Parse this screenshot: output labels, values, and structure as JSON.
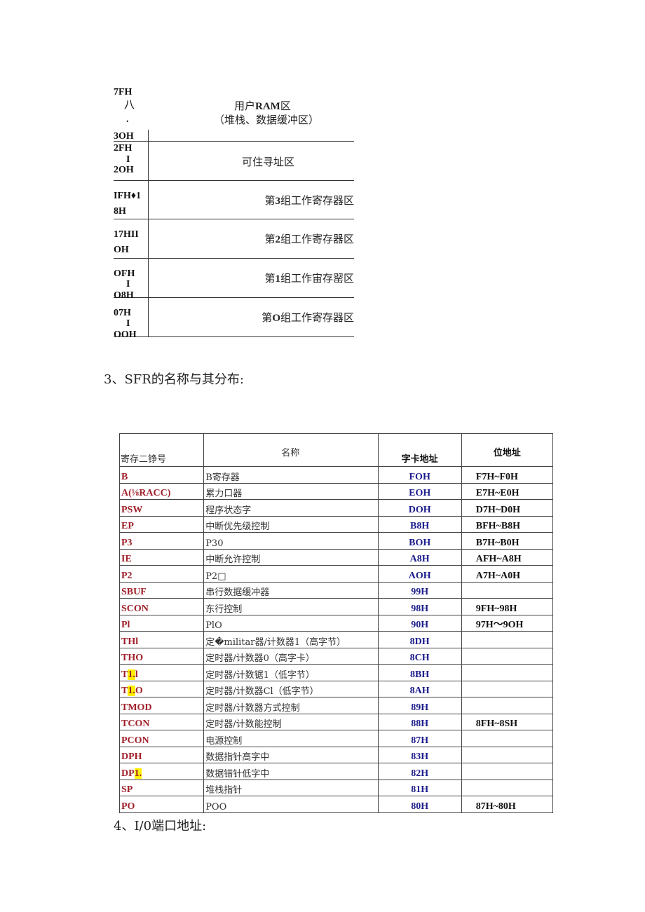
{
  "memory_map": {
    "user_ram": {
      "addr_top": "7FH",
      "addr_sep": "八",
      "addr_dot": ".",
      "addr_bottom": "3OH",
      "title_prefix": "用户",
      "title_bold": "RAM",
      "title_suffix": "区",
      "subtitle": "（堆栈、数据缓冲区）"
    },
    "bit_area": {
      "addr_top": "2FH",
      "addr_sep": "I",
      "addr_bottom": "2OH",
      "title": "可住寻址区"
    },
    "banks": [
      {
        "addr_top": "IFH♦1",
        "addr_sep": "",
        "addr_bottom": "8H",
        "prefix": "第",
        "num": "3",
        "suffix": "组工作寄存器区"
      },
      {
        "addr_top": "17HII",
        "addr_sep": "",
        "addr_bottom": "OH",
        "prefix": "第",
        "num": "2",
        "suffix": "组工作寄存器区"
      },
      {
        "addr_top": "OFH",
        "addr_sep": "I",
        "addr_bottom": "O8H",
        "prefix": "第",
        "num": "1",
        "suffix": "组工作宙存罂区"
      },
      {
        "addr_top": "07H",
        "addr_sep": "I",
        "addr_bottom": "OOH",
        "prefix": "第",
        "num": "O",
        "suffix": "组工作寄存器区"
      }
    ]
  },
  "section3_heading": "3、SFR的名称与其分布:",
  "sfr_table": {
    "headers": {
      "symbol": "寄存二铮号",
      "name": "名称",
      "byte_addr": "字卡地址",
      "bit_addr": "位地址"
    },
    "rows": [
      {
        "reg": "B",
        "hl": "",
        "reg2": "",
        "name": "B寄存器",
        "byte": "FOH",
        "bit": "F7H~F0H"
      },
      {
        "reg": "A(⅛RACC)",
        "hl": "",
        "reg2": "",
        "name": "累力口器",
        "byte": "EOH",
        "bit": "E7H~E0H"
      },
      {
        "reg": "PSW",
        "hl": "",
        "reg2": "",
        "name": "程序状态字",
        "byte": "DOH",
        "bit": "D7H~D0H"
      },
      {
        "reg": "EP",
        "hl": "",
        "reg2": "",
        "name": "中断优先级控制",
        "byte": "B8H",
        "bit": "BFH~B8H"
      },
      {
        "reg": "P3",
        "hl": "",
        "reg2": "",
        "name": "P30",
        "byte": "BOH",
        "bit": "B7H~B0H"
      },
      {
        "reg": "IE",
        "hl": "",
        "reg2": "",
        "name": "中断允许控制",
        "byte": "A8H",
        "bit": "AFH~A8H"
      },
      {
        "reg": "P2",
        "hl": "",
        "reg2": "",
        "name": "P2□",
        "byte": "AOH",
        "bit": "A7H~A0H"
      },
      {
        "reg": "SBUF",
        "hl": "",
        "reg2": "",
        "name": "串行数据缓冲器",
        "byte": "99H",
        "bit": ""
      },
      {
        "reg": "SCON",
        "hl": "",
        "reg2": "",
        "name": "东行控制",
        "byte": "98H",
        "bit": "9FH~98H"
      },
      {
        "reg": "Pl",
        "hl": "",
        "reg2": "",
        "name": "PlO",
        "byte": "90H",
        "bit": "97H～9OH"
      },
      {
        "reg": "THl",
        "hl": "",
        "reg2": "",
        "name": "定�militar器/计数器1（高字节）",
        "byte": "8DH",
        "bit": ""
      },
      {
        "reg": "THO",
        "hl": "",
        "reg2": "",
        "name": "定时器/计数器0（高字卡）",
        "byte": "8CH",
        "bit": ""
      },
      {
        "reg": "T",
        "hl": "1.",
        "reg2": "l",
        "name": "定时器/计数锯1（低字节）",
        "byte": "8BH",
        "bit": ""
      },
      {
        "reg": "T",
        "hl": "1.",
        "reg2": "O",
        "name": "定时器/计数器Cl（低字节）",
        "byte": "8AH",
        "bit": ""
      },
      {
        "reg": "TMOD",
        "hl": "",
        "reg2": "",
        "name": "定时器/计数器方式控制",
        "byte": "89H",
        "bit": ""
      },
      {
        "reg": "TCON",
        "hl": "",
        "reg2": "",
        "name": "定时器/计数能控制",
        "byte": "88H",
        "bit": "8FH~8SH"
      },
      {
        "reg": "PCON",
        "hl": "",
        "reg2": "",
        "name": "电源控制",
        "byte": "87H",
        "bit": ""
      },
      {
        "reg": "DPH",
        "hl": "",
        "reg2": "",
        "name": "数据指针高字中",
        "byte": "83H",
        "bit": ""
      },
      {
        "reg": "DP",
        "hl": "1.",
        "reg2": "",
        "name": "数据错针低字中",
        "byte": "82H",
        "bit": ""
      },
      {
        "reg": "SP",
        "hl": "",
        "reg2": "",
        "name": "堆栈指针",
        "byte": "81H",
        "bit": ""
      },
      {
        "reg": "PO",
        "hl": "",
        "reg2": "",
        "name": "POO",
        "byte": "80H",
        "bit": "87H~80H"
      }
    ]
  },
  "section4_heading": "4、I/0端口地址:"
}
